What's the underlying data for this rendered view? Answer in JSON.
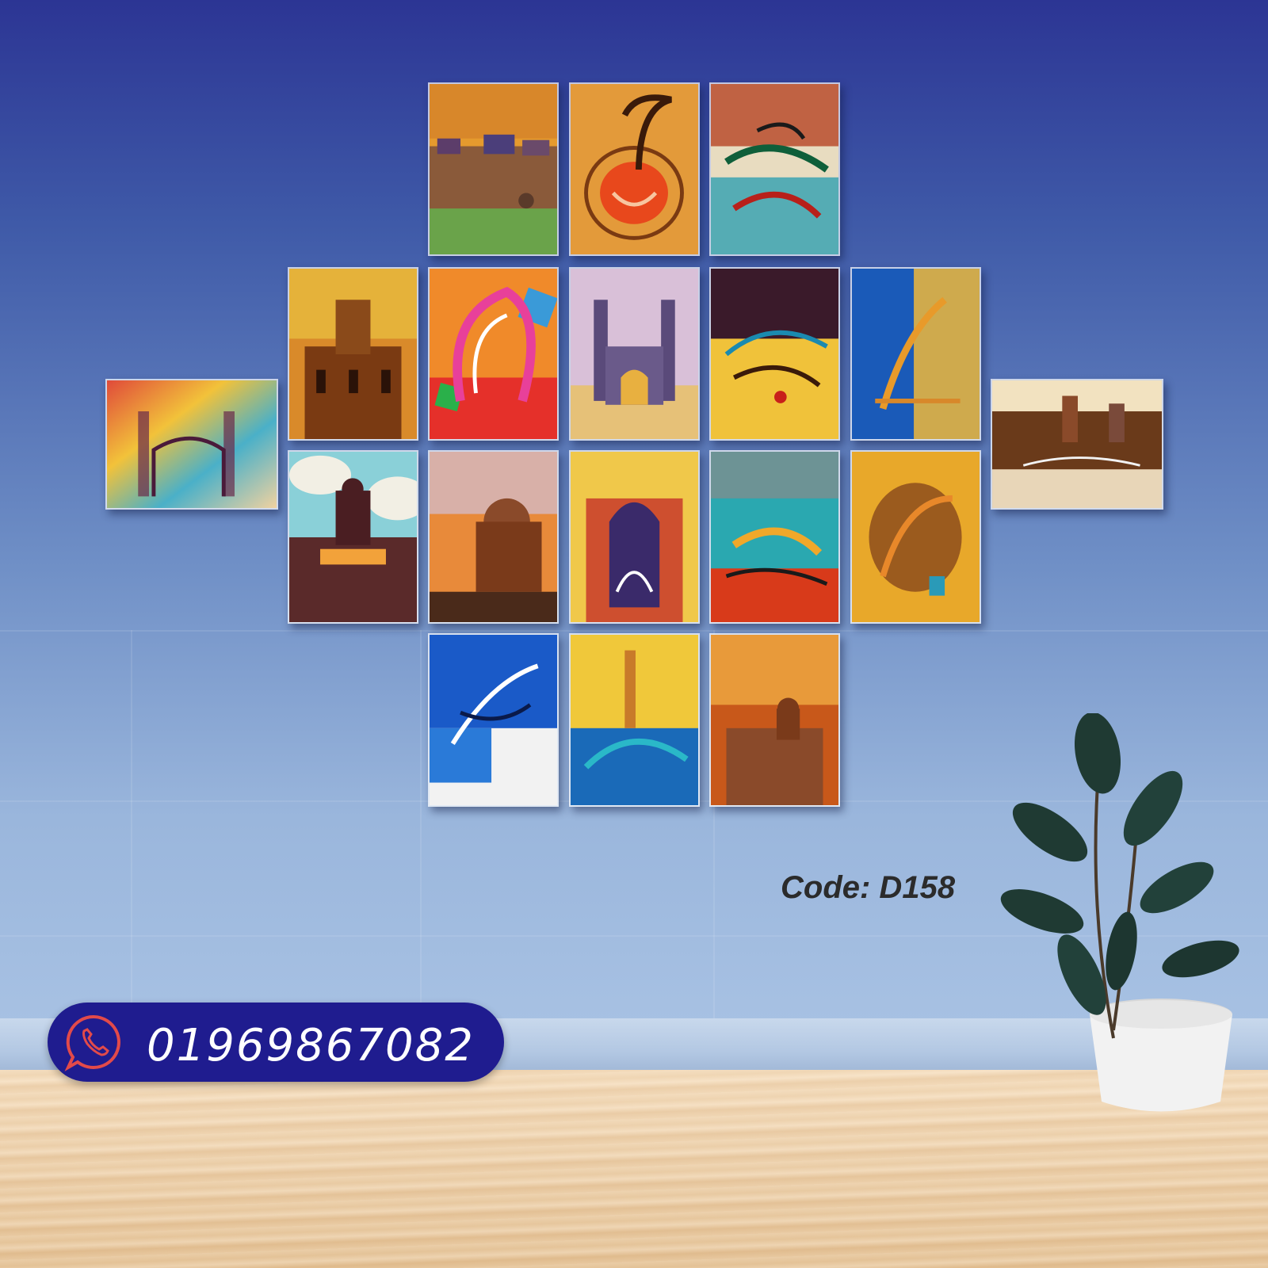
{
  "product": {
    "code_label": "Code: D158"
  },
  "contact": {
    "phone_number": "01969867082",
    "icon": "whatsapp-phone-icon"
  },
  "artworks": [
    {
      "id": "fort-green"
    },
    {
      "id": "allah-orange"
    },
    {
      "id": "calligraphy-teal-red"
    },
    {
      "id": "palace-rainbow"
    },
    {
      "id": "palace-orange"
    },
    {
      "id": "subhanallah-pink"
    },
    {
      "id": "charminar-watercolor"
    },
    {
      "id": "calligraphy-dark-yellow"
    },
    {
      "id": "calligraphy-blue-gold"
    },
    {
      "id": "city-landscape"
    },
    {
      "id": "mysore-palace"
    },
    {
      "id": "dome-sunset"
    },
    {
      "id": "mosque-calligraphy"
    },
    {
      "id": "calligraphy-teal-orange"
    },
    {
      "id": "calligraphy-gold-brown"
    },
    {
      "id": "calligraphy-blue-white"
    },
    {
      "id": "calligraphy-blue-yellow"
    },
    {
      "id": "palace-rust"
    }
  ],
  "colors": {
    "wall": "#3f5aa8",
    "pill": "#1f1c8f",
    "floor": "#e8c9a0"
  }
}
